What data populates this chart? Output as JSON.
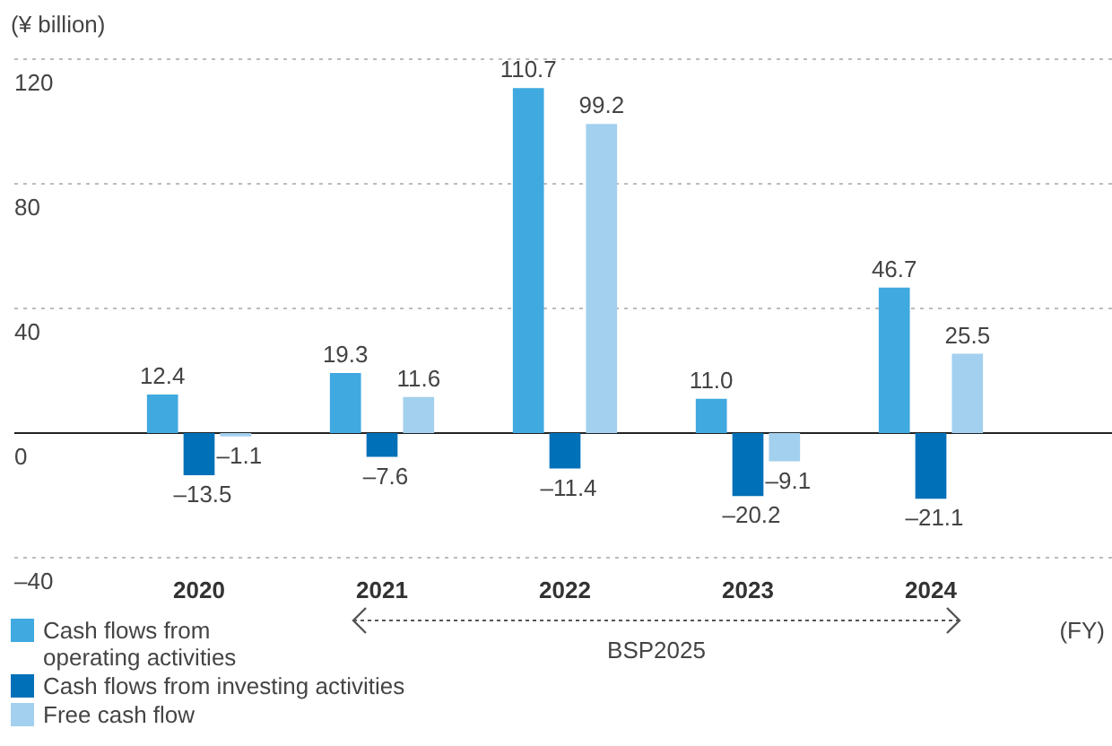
{
  "chart_data": {
    "type": "bar",
    "ylabel": "(¥ billion)",
    "xlabel": "(FY)",
    "categories": [
      "2020",
      "2021",
      "2022",
      "2023",
      "2024"
    ],
    "series": [
      {
        "name": "Cash flows from operating activities",
        "color": "#3fa9e0",
        "values": [
          12.4,
          19.3,
          110.7,
          11.0,
          46.7
        ],
        "value_labels": [
          "12.4",
          "19.3",
          "110.7",
          "11.0",
          "46.7"
        ]
      },
      {
        "name": "Cash flows from investing activities",
        "color": "#0070b8",
        "values": [
          -13.5,
          -7.6,
          -11.4,
          -20.2,
          -21.1
        ],
        "value_labels": [
          "–13.5",
          "–7.6",
          "–11.4",
          "–20.2",
          "–21.1"
        ]
      },
      {
        "name": "Free cash flow",
        "color": "#a3d0ee",
        "values": [
          -1.1,
          11.6,
          99.2,
          -9.1,
          25.5
        ],
        "value_labels": [
          "–1.1",
          "11.6",
          "99.2",
          "–9.1",
          "25.5"
        ]
      }
    ],
    "ylim": [
      -40,
      120
    ],
    "yticks": [
      {
        "value": -40,
        "label": "–40"
      },
      0,
      40,
      80,
      120
    ],
    "grid": "y",
    "legend": "bottom left",
    "annotations": [
      "BSP2025"
    ]
  }
}
